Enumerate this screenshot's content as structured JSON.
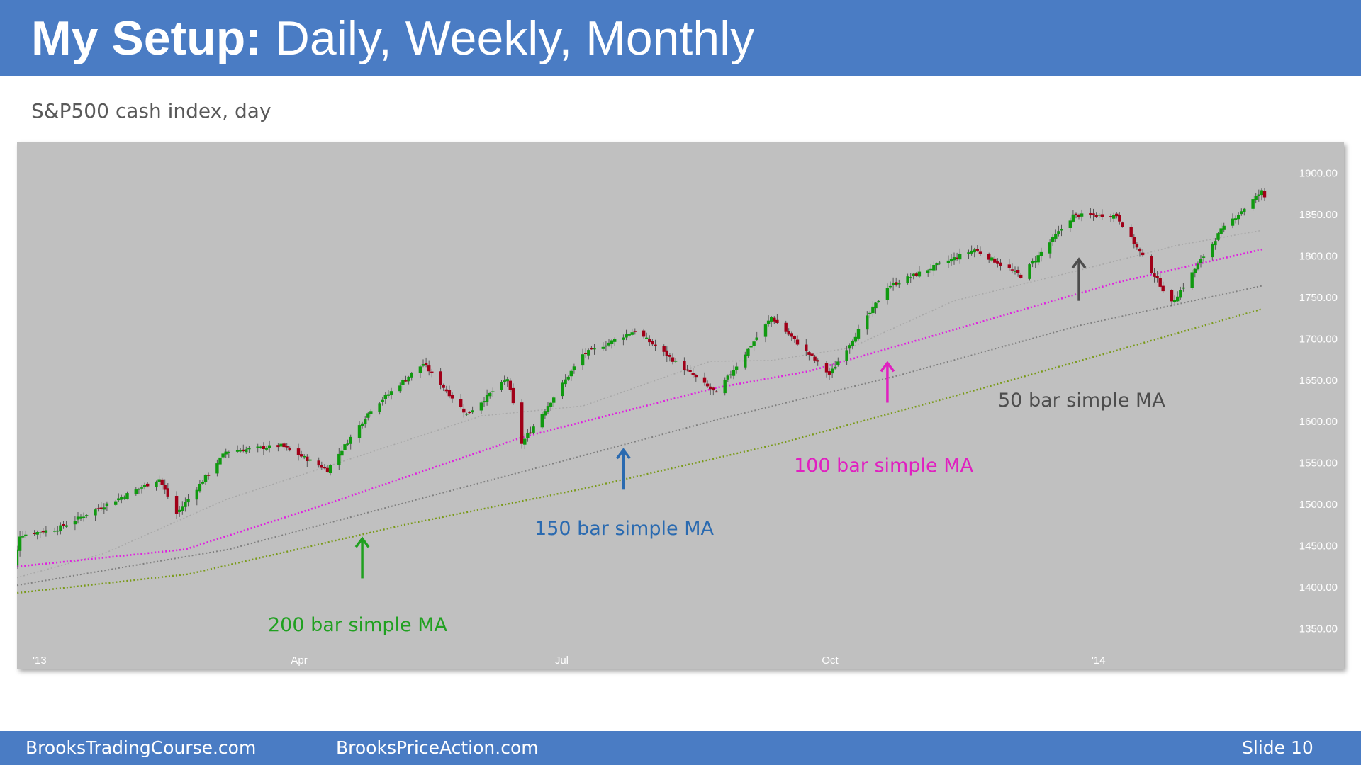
{
  "slide": {
    "title_bold": "My Setup:",
    "title_rest": " Daily, Weekly, Monthly",
    "subtitle": "S&P500 cash index, day",
    "footer_left": "BrooksTradingCourse.com",
    "footer_center": "BrooksPriceAction.com",
    "slide_number": "Slide  10"
  },
  "colors": {
    "header": "#4a7cc4",
    "plot_bg": "#c0c0c0",
    "bull_candle": "#109910",
    "bear_candle": "#a00018",
    "ma50": "#a8a8a8",
    "ma100": "#e020e0",
    "ma150": "#7f7f7f",
    "ma200": "#7a9a1a"
  },
  "chart_data": {
    "type": "line",
    "title": "",
    "xlabel": "",
    "ylabel": "",
    "ylim": [
      1330,
      1920
    ],
    "y_ticks": [
      "1900.00",
      "1850.00",
      "1800.00",
      "1750.00",
      "1700.00",
      "1650.00",
      "1600.00",
      "1550.00",
      "1500.00",
      "1450.00",
      "1400.00",
      "1350.00"
    ],
    "x_tick_labels": [
      "'13",
      "Apr",
      "Jul",
      "Oct",
      "'14"
    ],
    "x_tick_dates": [
      "2013-01-02",
      "2013-04-01",
      "2013-07-01",
      "2013-10-01",
      "2014-01-02"
    ],
    "x_range": [
      "2013-01-01",
      "2014-03-07"
    ],
    "price_series": {
      "name": "S&P500 cash index, day",
      "style": "candlestick",
      "points": [
        [
          "2012-12-26",
          1419
        ],
        [
          "2012-12-31",
          1426
        ],
        [
          "2013-01-02",
          1462
        ],
        [
          "2013-01-15",
          1470
        ],
        [
          "2013-01-31",
          1498
        ],
        [
          "2013-02-19",
          1530
        ],
        [
          "2013-02-25",
          1488
        ],
        [
          "2013-03-14",
          1563
        ],
        [
          "2013-04-02",
          1570
        ],
        [
          "2013-04-18",
          1541
        ],
        [
          "2013-05-03",
          1614
        ],
        [
          "2013-05-21",
          1669
        ],
        [
          "2013-06-05",
          1608
        ],
        [
          "2013-06-19",
          1651
        ],
        [
          "2013-06-24",
          1573
        ],
        [
          "2013-07-15",
          1680
        ],
        [
          "2013-08-02",
          1709
        ],
        [
          "2013-08-30",
          1633
        ],
        [
          "2013-09-18",
          1725
        ],
        [
          "2013-10-08",
          1656
        ],
        [
          "2013-10-28",
          1762
        ],
        [
          "2013-11-27",
          1807
        ],
        [
          "2013-12-13",
          1775
        ],
        [
          "2013-12-31",
          1848
        ],
        [
          "2014-01-15",
          1848
        ],
        [
          "2014-02-03",
          1742
        ],
        [
          "2014-02-20",
          1830
        ],
        [
          "2014-03-06",
          1877
        ],
        [
          "2014-03-07",
          1870
        ]
      ]
    },
    "series": [
      {
        "name": "50 bar simple MA",
        "style": "dotted",
        "points": [
          [
            "2012-12-26",
            1405
          ],
          [
            "2013-01-31",
            1440
          ],
          [
            "2013-03-14",
            1505
          ],
          [
            "2013-05-01",
            1560
          ],
          [
            "2013-06-10",
            1606
          ],
          [
            "2013-07-15",
            1618
          ],
          [
            "2013-08-28",
            1672
          ],
          [
            "2013-09-18",
            1673
          ],
          [
            "2013-10-15",
            1688
          ],
          [
            "2013-11-20",
            1745
          ],
          [
            "2013-12-31",
            1780
          ],
          [
            "2014-02-05",
            1812
          ],
          [
            "2014-03-06",
            1830
          ]
        ]
      },
      {
        "name": "100 bar simple MA",
        "style": "dotted",
        "points": [
          [
            "2012-12-26",
            1422
          ],
          [
            "2013-02-28",
            1445
          ],
          [
            "2013-04-18",
            1500
          ],
          [
            "2013-06-24",
            1580
          ],
          [
            "2013-08-30",
            1640
          ],
          [
            "2013-10-01",
            1660
          ],
          [
            "2013-11-15",
            1705
          ],
          [
            "2014-01-15",
            1767
          ],
          [
            "2014-03-06",
            1807
          ]
        ]
      },
      {
        "name": "150 bar simple MA",
        "style": "dotted",
        "points": [
          [
            "2012-12-26",
            1398
          ],
          [
            "2013-03-15",
            1445
          ],
          [
            "2013-07-01",
            1545
          ],
          [
            "2013-09-01",
            1603
          ],
          [
            "2013-11-01",
            1655
          ],
          [
            "2014-01-02",
            1715
          ],
          [
            "2014-03-06",
            1763
          ]
        ]
      },
      {
        "name": "200 bar simple MA",
        "style": "dotted",
        "points": [
          [
            "2012-12-26",
            1390
          ],
          [
            "2013-03-01",
            1415
          ],
          [
            "2013-05-15",
            1475
          ],
          [
            "2013-07-15",
            1518
          ],
          [
            "2013-09-20",
            1572
          ],
          [
            "2013-11-15",
            1625
          ],
          [
            "2014-01-15",
            1685
          ],
          [
            "2014-03-06",
            1735
          ]
        ]
      }
    ],
    "annotations": [
      {
        "label": "50 bar simple MA",
        "color": "#4d4d4d",
        "arrow_date": "2014-01-02",
        "arrow_from": 1745,
        "arrow_to": 1795
      },
      {
        "label": "100 bar simple MA",
        "color": "#e020c0",
        "arrow_date": "2013-10-28",
        "arrow_from": 1622,
        "arrow_to": 1670
      },
      {
        "label": "150 bar simple MA",
        "color": "#2a6ab0",
        "arrow_date": "2013-07-29",
        "arrow_from": 1517,
        "arrow_to": 1565
      },
      {
        "label": "200 bar simple MA",
        "color": "#20a020",
        "arrow_date": "2013-04-30",
        "arrow_from": 1410,
        "arrow_to": 1458
      }
    ]
  }
}
